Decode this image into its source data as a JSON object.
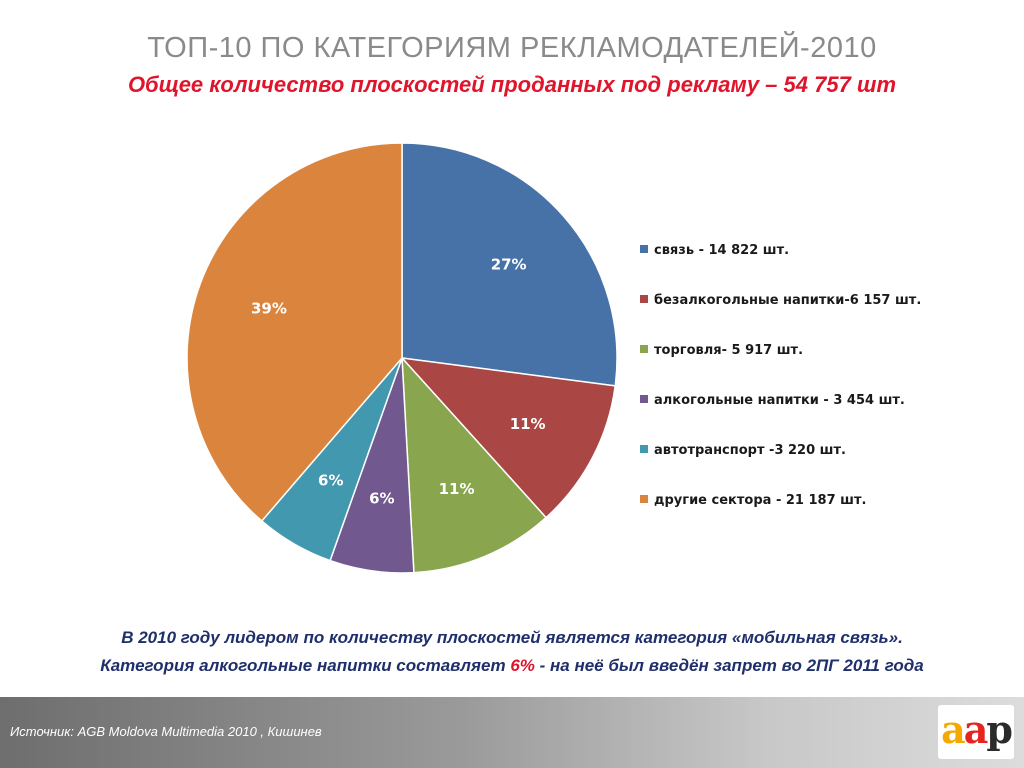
{
  "slide": {
    "title": "ТОП-10 ПО КАТЕГОРИЯМ  РЕКЛАМОДАТЕЛЕЙ-2010",
    "subtitle": "Общее количество плоскостей проданных под рекламу – 54 757 шт"
  },
  "chart_data": {
    "type": "pie",
    "slices": [
      {
        "name": "связь - 14 822 шт.",
        "value": 14822,
        "label": "27%",
        "color": "#4672a8"
      },
      {
        "name": "безалкогольные напитки-6 157 шт.",
        "value": 6157,
        "label": "11%",
        "color": "#aa4643"
      },
      {
        "name": "торговля- 5 917 шт.",
        "value": 5917,
        "label": "11%",
        "color": "#89a54e"
      },
      {
        "name": "алкогольные напитки - 3 454 шт.",
        "value": 3454,
        "label": "6%",
        "color": "#71588f"
      },
      {
        "name": "автотранспорт  -3 220 шт.",
        "value": 3220,
        "label": "6%",
        "color": "#4198af"
      },
      {
        "name": "другие сектора - 21 187 шт.",
        "value": 21187,
        "label": "39%",
        "color": "#db843d"
      }
    ],
    "legend_position": "right"
  },
  "caption": {
    "line1": "В 2010 году лидером по количеству плоскостей является категория «мобильная связь».",
    "line2_before": "Категория алкогольные напитки составляет ",
    "line2_highlight": "6%",
    "line2_after": " - на неё был введён запрет во 2ПГ 2011 года"
  },
  "footer": {
    "source": "Источник: AGB Moldova  Multimedia 2010 , Кишинев",
    "logo": {
      "a1": "a",
      "a2": "a",
      "p": "p"
    }
  }
}
